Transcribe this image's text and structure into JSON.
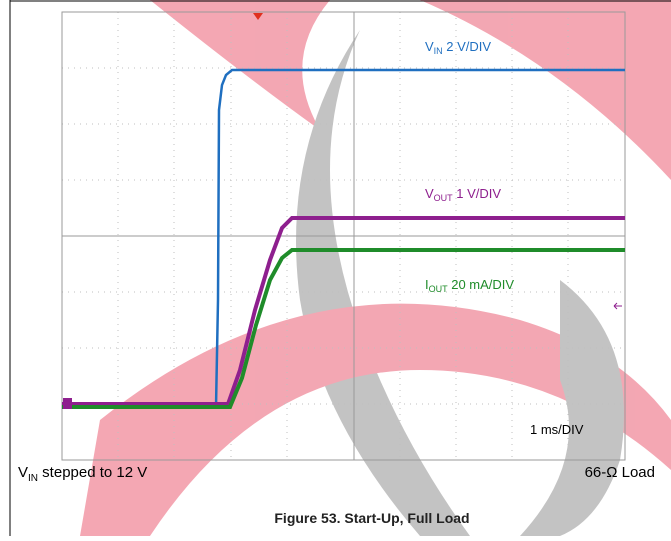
{
  "figure": {
    "traces": [
      {
        "main": "V",
        "sub": "IN",
        "rest": " 2 V/DIV"
      },
      {
        "main": "V",
        "sub": "OUT",
        "rest": " 1 V/DIV"
      },
      {
        "main": "I",
        "sub": "OUT",
        "rest": " 20 mA/DIV"
      }
    ],
    "timebase": "1 ms/DIV",
    "note_left": {
      "main": "V",
      "sub": "IN",
      "rest": " stepped to 12 V"
    },
    "note_right": "66-Ω Load",
    "caption": "Figure 53. Start-Up, Full Load"
  }
}
